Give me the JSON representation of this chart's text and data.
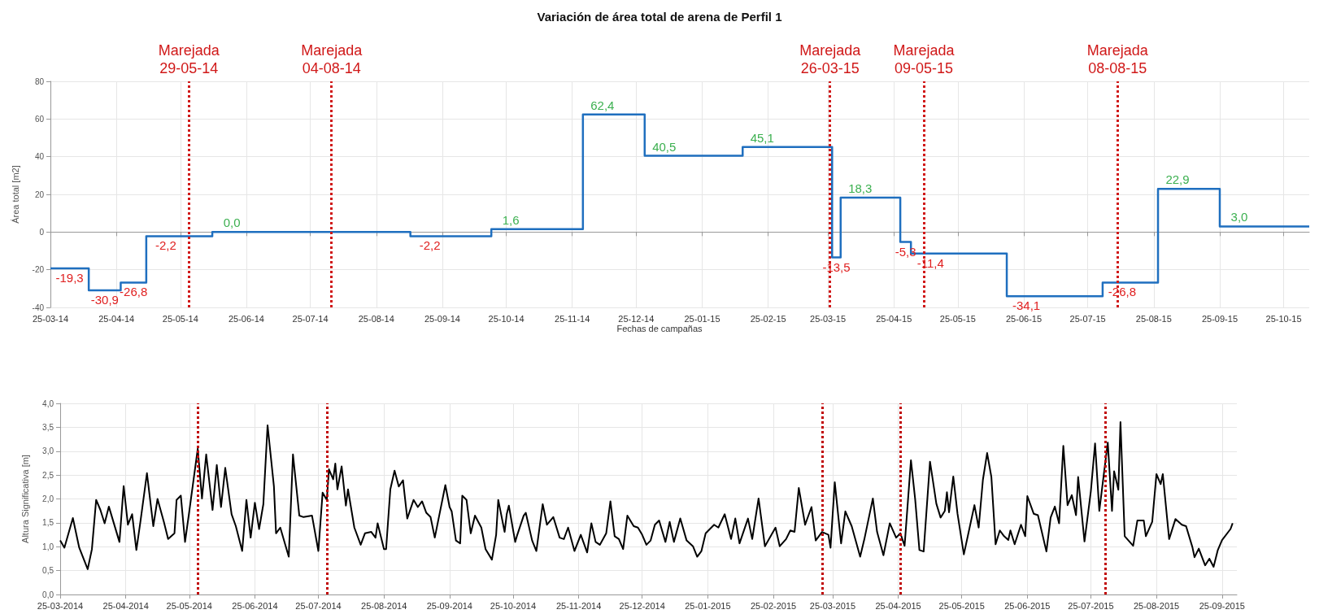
{
  "chart_data": [
    {
      "type": "step",
      "title": "Variación de área total de arena de Perfil 1",
      "xlabel": "Fechas de campañas",
      "ylabel": "Área total [m2]",
      "x": [
        "2014-03-25",
        "2014-04-12",
        "2014-04-27",
        "2014-05-09",
        "2014-06-09",
        "2014-09-10",
        "2014-10-18",
        "2014-11-30",
        "2014-12-29",
        "2015-02-13",
        "2015-03-27",
        "2015-03-31",
        "2015-04-28",
        "2015-05-03",
        "2015-06-17",
        "2015-08-01",
        "2015-08-27",
        "2015-09-25",
        "2015-11-06"
      ],
      "series": [
        {
          "color": "#1f6fbf",
          "values": [
            -19.3,
            -30.9,
            -26.8,
            -2.2,
            0.0,
            -2.2,
            1.6,
            62.4,
            40.5,
            45.1,
            -13.5,
            18.3,
            -5.3,
            -11.4,
            -34.1,
            -26.8,
            22.9,
            3.0,
            3.0
          ],
          "value_labels": [
            "-19,3",
            "-30,9",
            "-26,8",
            "-2,2",
            "0,0",
            "-2,2",
            "1,6",
            "62,4",
            "40,5",
            "45,1",
            "-13,5",
            "18,3",
            "-5,3",
            "-11,4",
            "-34,1",
            "-26,8",
            "22,9",
            "3,0",
            null
          ]
        }
      ],
      "xlim": [
        "2014-03-25",
        "2015-11-06"
      ],
      "xticks": [
        {
          "value": "2014-03-25",
          "label": "25-03-14"
        },
        {
          "value": "2014-04-25",
          "label": "25-04-14"
        },
        {
          "value": "2014-05-25",
          "label": "25-05-14"
        },
        {
          "value": "2014-06-25",
          "label": "25-06-14"
        },
        {
          "value": "2014-07-25",
          "label": "25-07-14"
        },
        {
          "value": "2014-08-25",
          "label": "25-08-14"
        },
        {
          "value": "2014-09-25",
          "label": "25-09-14"
        },
        {
          "value": "2014-10-25",
          "label": "25-10-14"
        },
        {
          "value": "2014-11-25",
          "label": "25-11-14"
        },
        {
          "value": "2014-12-25",
          "label": "25-12-14"
        },
        {
          "value": "2015-01-25",
          "label": "25-01-15"
        },
        {
          "value": "2015-02-25",
          "label": "25-02-15"
        },
        {
          "value": "2015-03-25",
          "label": "25-03-15"
        },
        {
          "value": "2015-04-25",
          "label": "25-04-15"
        },
        {
          "value": "2015-05-25",
          "label": "25-05-15"
        },
        {
          "value": "2015-06-25",
          "label": "25-06-15"
        },
        {
          "value": "2015-07-25",
          "label": "25-07-15"
        },
        {
          "value": "2015-08-25",
          "label": "25-08-15"
        },
        {
          "value": "2015-09-25",
          "label": "25-09-15"
        },
        {
          "value": "2015-10-25",
          "label": "25-10-15"
        }
      ],
      "ylim": [
        -40,
        80
      ],
      "yticks": [
        -40,
        -20,
        0,
        20,
        40,
        60,
        80
      ],
      "grid": true,
      "ref_lines": [
        {
          "axis": "x",
          "value": "2014-05-29",
          "label": "Marejada 29-05-14",
          "color": "#d01818",
          "line_style": "dotted"
        },
        {
          "axis": "x",
          "value": "2014-08-04",
          "label": "Marejada 04-08-14",
          "color": "#d01818",
          "line_style": "dotted"
        },
        {
          "axis": "x",
          "value": "2015-03-26",
          "label": "Marejada 26-03-15",
          "color": "#d01818",
          "line_style": "dotted"
        },
        {
          "axis": "x",
          "value": "2015-05-09",
          "label": "Marejada 09-05-15",
          "color": "#d01818",
          "line_style": "dotted"
        },
        {
          "axis": "x",
          "value": "2015-08-08",
          "label": "Marejada 08-08-15",
          "color": "#d01818",
          "line_style": "dotted"
        }
      ]
    },
    {
      "type": "line",
      "ylabel": "Altura Significativa [m]",
      "x": [
        "2014-03-25",
        "2014-03-27",
        "2014-03-31",
        "2014-04-03",
        "2014-04-07",
        "2014-04-09",
        "2014-04-11",
        "2014-04-13",
        "2014-04-15",
        "2014-04-17",
        "2014-04-22",
        "2014-04-24",
        "2014-04-26",
        "2014-04-28",
        "2014-04-30",
        "2014-05-02",
        "2014-05-05",
        "2014-05-08",
        "2014-05-10",
        "2014-05-13",
        "2014-05-15",
        "2014-05-18",
        "2014-05-19",
        "2014-05-21",
        "2014-05-23",
        "2014-05-25",
        "2014-05-29",
        "2014-05-31",
        "2014-06-02",
        "2014-06-05",
        "2014-06-07",
        "2014-06-09",
        "2014-06-11",
        "2014-06-14",
        "2014-06-16",
        "2014-06-19",
        "2014-06-21",
        "2014-06-23",
        "2014-06-25",
        "2014-06-27",
        "2014-06-29",
        "2014-07-01",
        "2014-07-04",
        "2014-07-05",
        "2014-07-07",
        "2014-07-11",
        "2014-07-13",
        "2014-07-16",
        "2014-07-18",
        "2014-07-22",
        "2014-07-25",
        "2014-07-27",
        "2014-07-29",
        "2014-07-30",
        "2014-08-01",
        "2014-08-02",
        "2014-08-03",
        "2014-08-05",
        "2014-08-07",
        "2014-08-08",
        "2014-08-11",
        "2014-08-14",
        "2014-08-16",
        "2014-08-19",
        "2014-08-21",
        "2014-08-22",
        "2014-08-25",
        "2014-08-26",
        "2014-08-28",
        "2014-08-30",
        "2014-09-01",
        "2014-09-03",
        "2014-09-05",
        "2014-09-08",
        "2014-09-10",
        "2014-09-12",
        "2014-09-14",
        "2014-09-16",
        "2014-09-18",
        "2014-09-23",
        "2014-09-25",
        "2014-09-26",
        "2014-09-28",
        "2014-09-30",
        "2014-10-01",
        "2014-10-03",
        "2014-10-05",
        "2014-10-07",
        "2014-10-10",
        "2014-10-12",
        "2014-10-15",
        "2014-10-17",
        "2014-10-18",
        "2014-10-21",
        "2014-10-22",
        "2014-10-23",
        "2014-10-26",
        "2014-10-27",
        "2014-10-30",
        "2014-10-31",
        "2014-11-03",
        "2014-11-05",
        "2014-11-08",
        "2014-11-10",
        "2014-11-13",
        "2014-11-16",
        "2014-11-18",
        "2014-11-20",
        "2014-11-23",
        "2014-11-26",
        "2014-11-29",
        "2014-12-01",
        "2014-12-03",
        "2014-12-05",
        "2014-12-08",
        "2014-12-10",
        "2014-12-12",
        "2014-12-14",
        "2014-12-16",
        "2014-12-18",
        "2014-12-21",
        "2014-12-23",
        "2014-12-25",
        "2014-12-27",
        "2014-12-29",
        "2014-12-31",
        "2015-01-02",
        "2015-01-05",
        "2015-01-07",
        "2015-01-09",
        "2015-01-12",
        "2015-01-15",
        "2015-01-18",
        "2015-01-20",
        "2015-01-22",
        "2015-01-24",
        "2015-01-28",
        "2015-01-30",
        "2015-02-02",
        "2015-02-05",
        "2015-02-07",
        "2015-02-09",
        "2015-02-13",
        "2015-02-15",
        "2015-02-18",
        "2015-02-21",
        "2015-02-26",
        "2015-02-28",
        "2015-03-03",
        "2015-03-05",
        "2015-03-07",
        "2015-03-09",
        "2015-03-12",
        "2015-03-15",
        "2015-03-17",
        "2015-03-20",
        "2015-03-23",
        "2015-03-24",
        "2015-03-26",
        "2015-03-29",
        "2015-03-31",
        "2015-04-03",
        "2015-04-07",
        "2015-04-09",
        "2015-04-13",
        "2015-04-15",
        "2015-04-18",
        "2015-04-21",
        "2015-04-24",
        "2015-04-26",
        "2015-04-28",
        "2015-05-01",
        "2015-05-03",
        "2015-05-05",
        "2015-05-07",
        "2015-05-10",
        "2015-05-11",
        "2015-05-13",
        "2015-05-15",
        "2015-05-17",
        "2015-05-18",
        "2015-05-19",
        "2015-05-21",
        "2015-05-23",
        "2015-05-26",
        "2015-05-28",
        "2015-05-31",
        "2015-06-02",
        "2015-06-04",
        "2015-06-06",
        "2015-06-08",
        "2015-06-10",
        "2015-06-12",
        "2015-06-14",
        "2015-06-16",
        "2015-06-17",
        "2015-06-19",
        "2015-06-22",
        "2015-06-24",
        "2015-06-25",
        "2015-06-28",
        "2015-06-30",
        "2015-07-02",
        "2015-07-04",
        "2015-07-06",
        "2015-07-08",
        "2015-07-10",
        "2015-07-12",
        "2015-07-14",
        "2015-07-16",
        "2015-07-18",
        "2015-07-19",
        "2015-07-22",
        "2015-07-25",
        "2015-07-27",
        "2015-07-29",
        "2015-08-02",
        "2015-08-04",
        "2015-08-05",
        "2015-08-07",
        "2015-08-08",
        "2015-08-10",
        "2015-08-14",
        "2015-08-16",
        "2015-08-19",
        "2015-08-20",
        "2015-08-23",
        "2015-08-25",
        "2015-08-27",
        "2015-08-28",
        "2015-08-31",
        "2015-09-03",
        "2015-09-06",
        "2015-09-08",
        "2015-09-11",
        "2015-09-12",
        "2015-09-14",
        "2015-09-17",
        "2015-09-19",
        "2015-09-21",
        "2015-09-23",
        "2015-09-25",
        "2015-09-29",
        "2015-09-30"
      ],
      "series": [
        {
          "color": "#000000",
          "values": [
            1.13,
            0.98,
            1.6,
            0.98,
            0.53,
            0.95,
            1.98,
            1.77,
            1.49,
            1.84,
            1.1,
            2.27,
            1.46,
            1.68,
            0.93,
            1.55,
            2.54,
            1.43,
            2.0,
            1.52,
            1.16,
            1.28,
            1.98,
            2.07,
            1.1,
            1.74,
            3.05,
            2.01,
            2.93,
            1.77,
            2.71,
            1.83,
            2.65,
            1.68,
            1.43,
            0.91,
            1.98,
            1.19,
            1.92,
            1.37,
            1.89,
            3.54,
            2.26,
            1.28,
            1.4,
            0.79,
            2.93,
            1.65,
            1.62,
            1.65,
            0.91,
            2.13,
            1.98,
            2.62,
            2.41,
            2.74,
            2.2,
            2.68,
            1.86,
            2.2,
            1.4,
            1.04,
            1.28,
            1.31,
            1.19,
            1.49,
            0.95,
            0.95,
            2.2,
            2.59,
            2.26,
            2.39,
            1.59,
            1.98,
            1.83,
            1.95,
            1.71,
            1.62,
            1.19,
            2.29,
            1.83,
            1.74,
            1.13,
            1.07,
            2.07,
            1.98,
            1.28,
            1.65,
            1.4,
            0.95,
            0.73,
            1.25,
            1.98,
            1.31,
            1.68,
            1.86,
            1.1,
            1.25,
            1.65,
            1.71,
            1.13,
            0.91,
            1.89,
            1.46,
            1.62,
            1.19,
            1.16,
            1.4,
            0.91,
            1.25,
            0.88,
            1.49,
            1.1,
            1.04,
            1.28,
            1.95,
            1.22,
            1.16,
            0.95,
            1.65,
            1.43,
            1.4,
            1.25,
            1.04,
            1.13,
            1.46,
            1.55,
            1.1,
            1.52,
            1.1,
            1.59,
            1.13,
            1.01,
            0.79,
            0.91,
            1.28,
            1.46,
            1.4,
            1.68,
            1.16,
            1.59,
            1.07,
            1.59,
            1.16,
            2.01,
            1.01,
            1.4,
            1.01,
            1.16,
            1.34,
            1.31,
            2.23,
            1.46,
            1.83,
            1.13,
            1.31,
            1.25,
            0.98,
            2.35,
            1.07,
            1.74,
            1.43,
            0.79,
            1.16,
            2.01,
            1.31,
            0.82,
            1.49,
            1.19,
            1.28,
            1.02,
            2.81,
            1.99,
            0.93,
            0.9,
            2.78,
            2.49,
            1.9,
            1.61,
            1.75,
            2.14,
            1.72,
            2.47,
            1.69,
            0.84,
            1.25,
            1.87,
            1.4,
            2.4,
            2.96,
            2.46,
            1.05,
            1.34,
            1.22,
            1.14,
            1.34,
            1.05,
            1.46,
            1.22,
            2.06,
            1.69,
            1.66,
            1.28,
            0.9,
            1.61,
            1.84,
            1.49,
            3.11,
            1.87,
            2.08,
            1.66,
            2.46,
            1.11,
            2.16,
            3.16,
            1.75,
            3.18,
            1.75,
            2.58,
            2.19,
            3.61,
            1.22,
            1.02,
            1.55,
            1.55,
            1.22,
            1.52,
            2.52,
            2.31,
            2.52,
            1.16,
            1.58,
            1.46,
            1.43,
            0.99,
            0.78,
            0.96,
            0.61,
            0.75,
            0.58,
            0.93,
            1.14,
            1.37,
            1.49
          ]
        }
      ],
      "xlim": [
        "2014-03-25",
        "2015-10-02"
      ],
      "xticks": [
        {
          "value": "2014-03-25",
          "label": "25-03-2014"
        },
        {
          "value": "2014-04-25",
          "label": "25-04-2014"
        },
        {
          "value": "2014-05-25",
          "label": "25-05-2014"
        },
        {
          "value": "2014-06-25",
          "label": "25-06-2014"
        },
        {
          "value": "2014-07-25",
          "label": "25-07-2014"
        },
        {
          "value": "2014-08-25",
          "label": "25-08-2014"
        },
        {
          "value": "2014-09-25",
          "label": "25-09-2014"
        },
        {
          "value": "2014-10-25",
          "label": "25-10-2014"
        },
        {
          "value": "2014-11-25",
          "label": "25-11-2014"
        },
        {
          "value": "2014-12-25",
          "label": "25-12-2014"
        },
        {
          "value": "2015-01-25",
          "label": "25-01-2015"
        },
        {
          "value": "2015-02-25",
          "label": "25-02-2015"
        },
        {
          "value": "2015-03-25",
          "label": "25-03-2015"
        },
        {
          "value": "2015-04-25",
          "label": "25-04-2015"
        },
        {
          "value": "2015-05-25",
          "label": "25-05-2015"
        },
        {
          "value": "2015-06-25",
          "label": "25-06-2015"
        },
        {
          "value": "2015-07-25",
          "label": "25-07-2015"
        },
        {
          "value": "2015-08-25",
          "label": "25-08-2015"
        },
        {
          "value": "2015-09-25",
          "label": "25-09-2015"
        }
      ],
      "ylim": [
        0,
        4
      ],
      "yticks": [
        {
          "value": 0,
          "label": "0,0"
        },
        {
          "value": 0.5,
          "label": "0,5"
        },
        {
          "value": 1,
          "label": "1,0"
        },
        {
          "value": 1.5,
          "label": "1,5"
        },
        {
          "value": 2,
          "label": "2,0"
        },
        {
          "value": 2.5,
          "label": "2,5"
        },
        {
          "value": 3,
          "label": "3,0"
        },
        {
          "value": 3.5,
          "label": "3,5"
        },
        {
          "value": 4,
          "label": "4,0"
        }
      ],
      "grid": true,
      "marker": "none",
      "ref_lines": [
        {
          "axis": "x",
          "value": "2014-05-29",
          "label": null,
          "color": "#c00000",
          "line_style": "dotted"
        },
        {
          "axis": "x",
          "value": "2014-07-29",
          "label": null,
          "color": "#c00000",
          "line_style": "dotted"
        },
        {
          "axis": "x",
          "value": "2015-03-20",
          "label": null,
          "color": "#c00000",
          "line_style": "dotted"
        },
        {
          "axis": "x",
          "value": "2015-04-26",
          "label": null,
          "color": "#c00000",
          "line_style": "dotted"
        },
        {
          "axis": "x",
          "value": "2015-08-01",
          "label": null,
          "color": "#c00000",
          "line_style": "dotted"
        }
      ]
    }
  ]
}
